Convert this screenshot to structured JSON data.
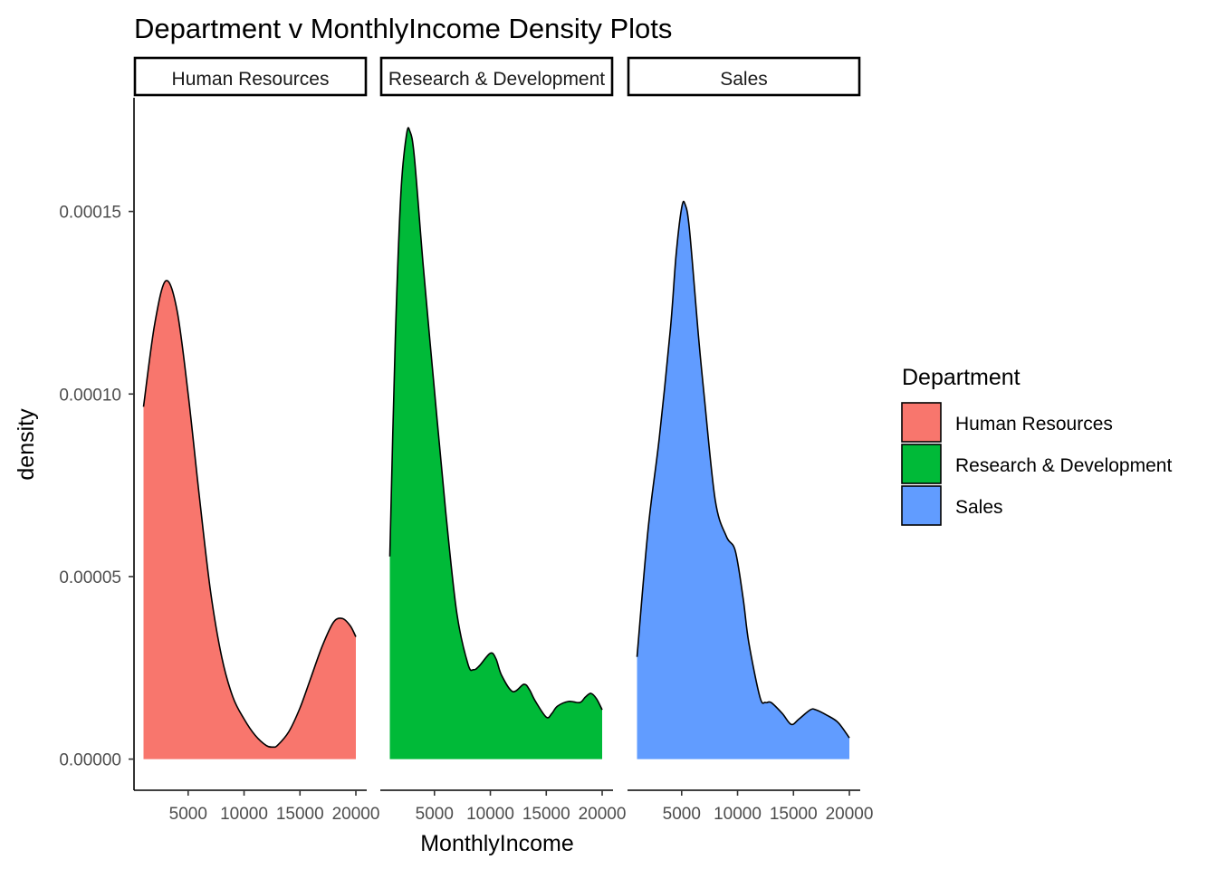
{
  "chart_data": {
    "type": "area",
    "title": "Department v MonthlyIncome Density Plots",
    "xlabel": "MonthlyIncome",
    "ylabel": "density",
    "xlim": [
      1009,
      19999
    ],
    "ylim": [
      0,
      0.00018
    ],
    "x_ticks": [
      5000,
      10000,
      15000,
      20000
    ],
    "x_tick_labels": [
      "5000",
      "10000",
      "15000",
      "20000"
    ],
    "y_ticks": [
      0,
      5e-05,
      0.0001,
      0.00015
    ],
    "y_tick_labels": [
      "0.00000",
      "0.00005",
      "0.00010",
      "0.00015"
    ],
    "legend": {
      "title": "Department",
      "position": "right",
      "entries": [
        "Human Resources",
        "Research & Development",
        "Sales"
      ]
    },
    "colors": [
      "#F8766D",
      "#00BA38",
      "#619CFF"
    ],
    "series": [
      {
        "name": "Human Resources",
        "x": [
          1009,
          2000,
          3000,
          4000,
          5000,
          6000,
          7000,
          8000,
          9000,
          10000,
          11000,
          12000,
          12600,
          13000,
          14000,
          15000,
          16000,
          17000,
          18000,
          18800,
          19500,
          19999
        ],
        "y": [
          9.65e-05,
          0.000119,
          0.000131,
          0.000123,
          0.0001,
          7.2e-05,
          4.6e-05,
          2.8e-05,
          1.7e-05,
          1.1e-05,
          6.5e-06,
          3.7e-06,
          3.3e-06,
          3.8e-06,
          7.5e-06,
          1.4e-05,
          2.25e-05,
          3.1e-05,
          3.75e-05,
          3.85e-05,
          3.65e-05,
          3.35e-05
        ]
      },
      {
        "name": "Research & Development",
        "x": [
          1009,
          1500,
          2000,
          2500,
          2800,
          3200,
          4000,
          5000,
          6000,
          7000,
          8000,
          8500,
          9000,
          10000,
          10500,
          11000,
          12000,
          13000,
          13500,
          14000,
          15000,
          15500,
          16000,
          17000,
          18000,
          18500,
          19000,
          19500,
          19999
        ],
        "y": [
          5.55e-05,
          0.000115,
          0.000155,
          0.000171,
          0.000172,
          0.000165,
          0.000135,
          0.000101,
          6.8e-05,
          4e-05,
          2.6e-05,
          2.45e-05,
          2.55e-05,
          2.9e-05,
          2.75e-05,
          2.3e-05,
          1.85e-05,
          2.05e-05,
          1.9e-05,
          1.6e-05,
          1.15e-05,
          1.25e-05,
          1.45e-05,
          1.58e-05,
          1.55e-05,
          1.7e-05,
          1.8e-05,
          1.65e-05,
          1.35e-05
        ]
      },
      {
        "name": "Sales",
        "x": [
          1009,
          2000,
          3000,
          4000,
          4500,
          5000,
          5300,
          5700,
          6500,
          7000,
          8000,
          9000,
          9800,
          10500,
          11000,
          12000,
          12500,
          13000,
          14000,
          14800,
          15500,
          16500,
          17000,
          18000,
          19000,
          19999
        ],
        "y": [
          2.8e-05,
          6.3e-05,
          8.8e-05,
          0.000118,
          0.000138,
          0.000151,
          0.000152,
          0.000145,
          0.000116,
          0.0001,
          7.1e-05,
          6.1e-05,
          5.7e-05,
          4.4e-05,
          3.2e-05,
          1.7e-05,
          1.55e-05,
          1.55e-05,
          1.25e-05,
          9.5e-06,
          1.1e-05,
          1.35e-05,
          1.35e-05,
          1.2e-05,
          1e-05,
          5.8e-06
        ]
      }
    ]
  }
}
